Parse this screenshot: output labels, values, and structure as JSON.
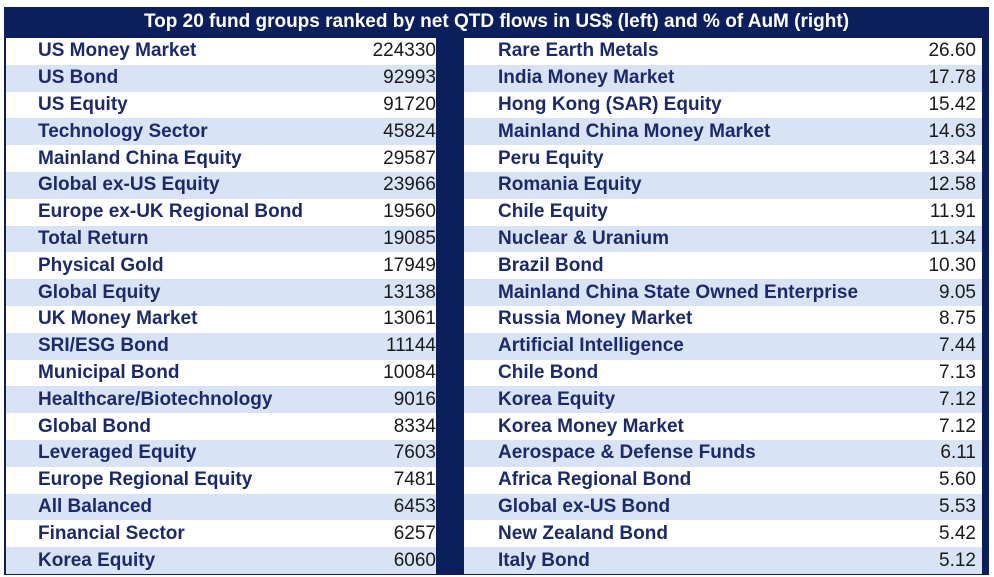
{
  "title": "Top 20 fund groups ranked by net QTD flows in US$ (left) and % of AuM (right)",
  "left": [
    {
      "name": "US Money Market",
      "value": "224330"
    },
    {
      "name": "US Bond",
      "value": "92993"
    },
    {
      "name": "US Equity",
      "value": "91720"
    },
    {
      "name": "Technology Sector",
      "value": "45824"
    },
    {
      "name": "Mainland China Equity",
      "value": "29587"
    },
    {
      "name": "Global ex-US Equity",
      "value": "23966"
    },
    {
      "name": "Europe ex-UK Regional Bond",
      "value": "19560"
    },
    {
      "name": "Total Return",
      "value": "19085"
    },
    {
      "name": "Physical Gold",
      "value": "17949"
    },
    {
      "name": "Global Equity",
      "value": "13138"
    },
    {
      "name": "UK Money Market",
      "value": "13061"
    },
    {
      "name": "SRI/ESG Bond",
      "value": "11144"
    },
    {
      "name": "Municipal Bond",
      "value": "10084"
    },
    {
      "name": "Healthcare/Biotechnology",
      "value": "9016"
    },
    {
      "name": "Global Bond",
      "value": "8334"
    },
    {
      "name": "Leveraged Equity",
      "value": "7603"
    },
    {
      "name": "Europe Regional Equity",
      "value": "7481"
    },
    {
      "name": "All Balanced",
      "value": "6453"
    },
    {
      "name": "Financial Sector",
      "value": "6257"
    },
    {
      "name": "Korea Equity",
      "value": "6060"
    }
  ],
  "right": [
    {
      "name": "Rare Earth Metals",
      "value": "26.60"
    },
    {
      "name": "India Money Market",
      "value": "17.78"
    },
    {
      "name": "Hong Kong (SAR) Equity",
      "value": "15.42"
    },
    {
      "name": "Mainland China Money Market",
      "value": "14.63"
    },
    {
      "name": "Peru Equity",
      "value": "13.34"
    },
    {
      "name": "Romania Equity",
      "value": "12.58"
    },
    {
      "name": "Chile Equity",
      "value": "11.91"
    },
    {
      "name": "Nuclear & Uranium",
      "value": "11.34"
    },
    {
      "name": "Brazil Bond",
      "value": "10.30"
    },
    {
      "name": "Mainland China State Owned Enterprise",
      "value": "9.05"
    },
    {
      "name": "Russia Money Market",
      "value": "8.75"
    },
    {
      "name": "Artificial Intelligence",
      "value": "7.44"
    },
    {
      "name": "Chile Bond",
      "value": "7.13"
    },
    {
      "name": "Korea Equity",
      "value": "7.12"
    },
    {
      "name": "Korea Money Market",
      "value": "7.12"
    },
    {
      "name": "Aerospace & Defense Funds",
      "value": "6.11"
    },
    {
      "name": "Africa Regional Bond",
      "value": "5.60"
    },
    {
      "name": "Global ex-US Bond",
      "value": "5.53"
    },
    {
      "name": "New Zealand Bond",
      "value": "5.42"
    },
    {
      "name": "Italy Bond",
      "value": "5.12"
    }
  ]
}
